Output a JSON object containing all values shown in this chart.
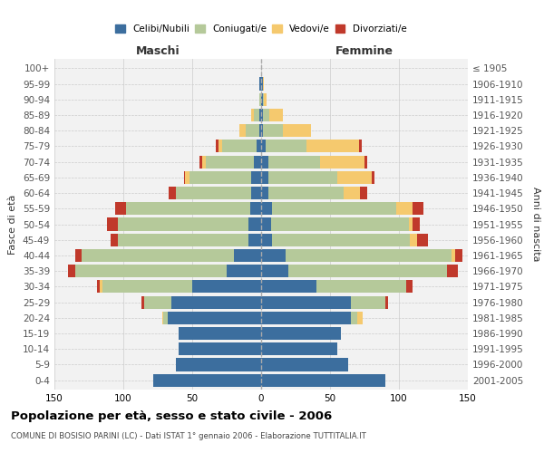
{
  "age_groups": [
    "0-4",
    "5-9",
    "10-14",
    "15-19",
    "20-24",
    "25-29",
    "30-34",
    "35-39",
    "40-44",
    "45-49",
    "50-54",
    "55-59",
    "60-64",
    "65-69",
    "70-74",
    "75-79",
    "80-84",
    "85-89",
    "90-94",
    "95-99",
    "100+"
  ],
  "birth_years": [
    "2001-2005",
    "1996-2000",
    "1991-1995",
    "1986-1990",
    "1981-1985",
    "1976-1980",
    "1971-1975",
    "1966-1970",
    "1961-1965",
    "1956-1960",
    "1951-1955",
    "1946-1950",
    "1941-1945",
    "1936-1940",
    "1931-1935",
    "1926-1930",
    "1921-1925",
    "1916-1920",
    "1911-1915",
    "1906-1910",
    "≤ 1905"
  ],
  "male": {
    "celibi": [
      78,
      62,
      60,
      60,
      68,
      65,
      50,
      25,
      20,
      9,
      9,
      8,
      7,
      7,
      5,
      3,
      1,
      1,
      0,
      1,
      0
    ],
    "coniugati": [
      0,
      0,
      0,
      0,
      3,
      20,
      65,
      110,
      110,
      95,
      95,
      90,
      55,
      45,
      35,
      25,
      10,
      4,
      1,
      0,
      0
    ],
    "vedovi": [
      0,
      0,
      0,
      0,
      1,
      0,
      2,
      0,
      0,
      0,
      0,
      0,
      0,
      3,
      3,
      3,
      5,
      2,
      0,
      0,
      0
    ],
    "divorziati": [
      0,
      0,
      0,
      0,
      0,
      2,
      2,
      5,
      5,
      5,
      8,
      8,
      5,
      1,
      2,
      2,
      0,
      0,
      0,
      0,
      0
    ]
  },
  "female": {
    "nubili": [
      90,
      63,
      55,
      58,
      65,
      65,
      40,
      20,
      18,
      8,
      7,
      8,
      5,
      5,
      5,
      3,
      1,
      1,
      1,
      1,
      0
    ],
    "coniugate": [
      0,
      0,
      0,
      0,
      5,
      25,
      65,
      115,
      120,
      100,
      100,
      90,
      55,
      50,
      38,
      30,
      15,
      5,
      1,
      0,
      0
    ],
    "vedove": [
      0,
      0,
      0,
      0,
      4,
      0,
      0,
      0,
      3,
      5,
      3,
      12,
      12,
      25,
      32,
      38,
      20,
      10,
      2,
      1,
      0
    ],
    "divorziate": [
      0,
      0,
      0,
      0,
      0,
      2,
      5,
      8,
      5,
      8,
      5,
      8,
      5,
      2,
      2,
      2,
      0,
      0,
      0,
      0,
      0
    ]
  },
  "colors": {
    "celibi": "#3c6e9e",
    "coniugati": "#b5c99a",
    "vedovi": "#f5c96e",
    "divorziati": "#c0392b"
  },
  "xlim": 150,
  "title": "Popolazione per età, sesso e stato civile - 2006",
  "subtitle": "COMUNE DI BOSISIO PARINI (LC) - Dati ISTAT 1° gennaio 2006 - Elaborazione TUTTITALIA.IT",
  "xlabel_left": "Maschi",
  "xlabel_right": "Femmine",
  "ylabel_left": "Fasce di età",
  "ylabel_right": "Anni di nascita",
  "label_color_left": "#333333",
  "label_color_right": "#333333"
}
